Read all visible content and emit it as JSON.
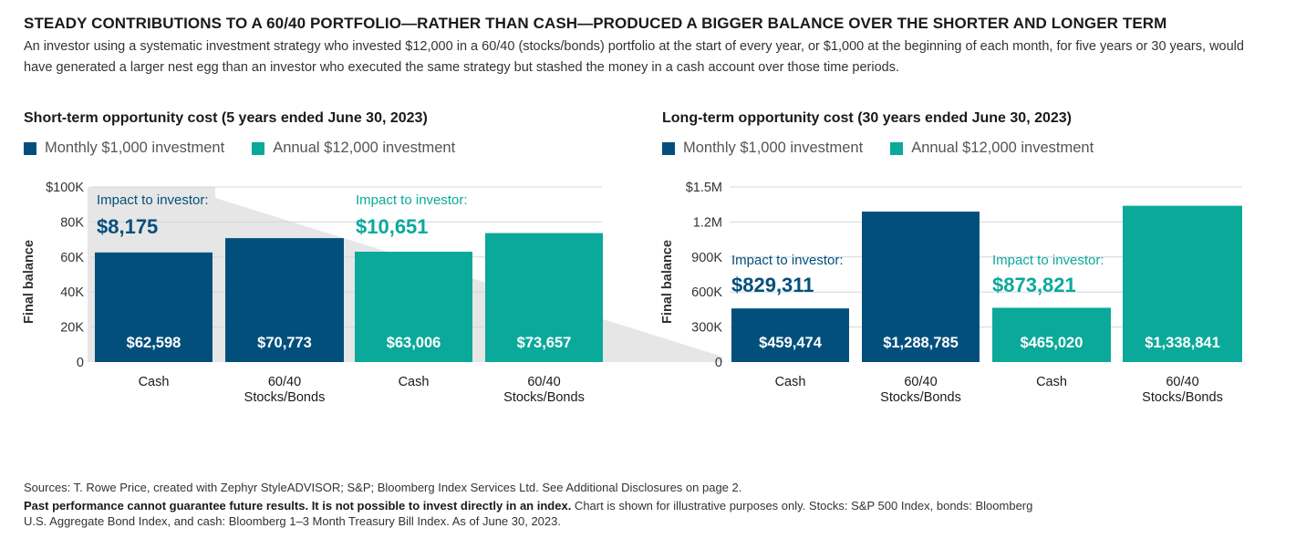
{
  "header": {
    "title": "STEADY CONTRIBUTIONS TO A 60/40 PORTFOLIO—RATHER THAN CASH—PRODUCED A BIGGER BALANCE OVER THE SHORTER AND LONGER TERM",
    "subtitle": "An investor using a systematic investment strategy who invested $12,000 in a 60/40 (stocks/bonds) portfolio at the start of every year, or $1,000 at the beginning of each month, for five years or 30 years, would have generated a larger nest egg than an investor who executed the same strategy but stashed the money in a cash account over those time periods."
  },
  "colors": {
    "monthly": "#034f7c",
    "annual": "#0aa99a",
    "shade": "#e6e6e6",
    "grid": "#cfd8dc"
  },
  "chart_data": [
    {
      "type": "bar",
      "title": "Short-term opportunity cost (5 years ended June 30, 2023)",
      "ylabel": "Final balance",
      "ylim": [
        0,
        100000
      ],
      "yticks": [
        0,
        20000,
        40000,
        60000,
        80000,
        100000
      ],
      "ytick_labels": [
        "0",
        "20K",
        "40K",
        "60K",
        "80K",
        "$100K"
      ],
      "categories": [
        "Cash",
        "60/40 Stocks/Bonds",
        "Cash",
        "60/40 Stocks/Bonds"
      ],
      "category_lines": [
        [
          "Cash"
        ],
        [
          "60/40",
          "Stocks/Bonds"
        ],
        [
          "Cash"
        ],
        [
          "60/40",
          "Stocks/Bonds"
        ]
      ],
      "values": [
        62598,
        70773,
        63006,
        73657
      ],
      "value_labels": [
        "$62,598",
        "$70,773",
        "$63,006",
        "$73,657"
      ],
      "bar_series": [
        "Monthly $1,000 investment",
        "Monthly $1,000 investment",
        "Annual $12,000 investment",
        "Annual $12,000 investment"
      ],
      "legend": [
        "Monthly $1,000 investment",
        "Annual $12,000 investment"
      ],
      "annotations": [
        {
          "series": "Monthly $1,000 investment",
          "label": "Impact to investor:",
          "value": "$8,175"
        },
        {
          "series": "Annual $12,000 investment",
          "label": "Impact to investor:",
          "value": "$10,651"
        }
      ]
    },
    {
      "type": "bar",
      "title": "Long-term opportunity cost (30 years ended June 30, 2023)",
      "ylabel": "Final balance",
      "ylim": [
        0,
        1500000
      ],
      "yticks": [
        0,
        300000,
        600000,
        900000,
        1200000,
        1500000
      ],
      "ytick_labels": [
        "0",
        "300K",
        "600K",
        "900K",
        "1.2M",
        "$1.5M"
      ],
      "categories": [
        "Cash",
        "60/40 Stocks/Bonds",
        "Cash",
        "60/40 Stocks/Bonds"
      ],
      "category_lines": [
        [
          "Cash"
        ],
        [
          "60/40",
          "Stocks/Bonds"
        ],
        [
          "Cash"
        ],
        [
          "60/40",
          "Stocks/Bonds"
        ]
      ],
      "values": [
        459474,
        1288785,
        465020,
        1338841
      ],
      "value_labels": [
        "$459,474",
        "$1,288,785",
        "$465,020",
        "$1,338,841"
      ],
      "bar_series": [
        "Monthly $1,000 investment",
        "Monthly $1,000 investment",
        "Annual $12,000 investment",
        "Annual $12,000 investment"
      ],
      "legend": [
        "Monthly $1,000 investment",
        "Annual $12,000 investment"
      ],
      "annotations": [
        {
          "series": "Monthly $1,000 investment",
          "label": "Impact to investor:",
          "value": "$829,311"
        },
        {
          "series": "Annual $12,000 investment",
          "label": "Impact to investor:",
          "value": "$873,821"
        }
      ]
    }
  ],
  "footer": {
    "sources": "Sources: T. Rowe Price, created with Zephyr StyleADVISOR; S&P; Bloomberg Index Services Ltd. See Additional Disclosures on page 2.",
    "disclaimer_bold": "Past performance cannot guarantee future results. It is not possible to invest directly in an index.",
    "disclaimer_rest": " Chart is shown for illustrative purposes only. Stocks: S&P 500 Index, bonds: Bloomberg U.S. Aggregate Bond Index, and cash: Bloomberg 1–3 Month Treasury Bill Index. As of June 30, 2023."
  }
}
